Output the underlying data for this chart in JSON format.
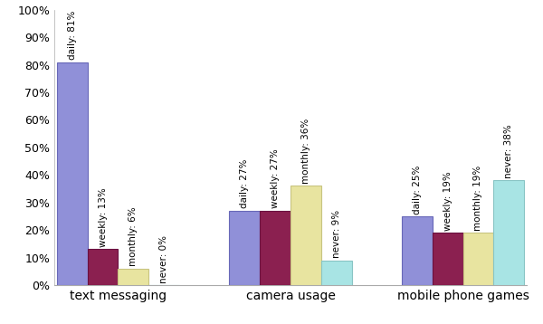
{
  "categories": [
    "text messaging",
    "camera usage",
    "mobile phone games"
  ],
  "subcategories": [
    "daily",
    "weekly",
    "monthly",
    "never"
  ],
  "values": [
    [
      81,
      13,
      6,
      0
    ],
    [
      27,
      27,
      36,
      9
    ],
    [
      25,
      19,
      19,
      38
    ]
  ],
  "bar_colors": [
    "#9090d8",
    "#8b2050",
    "#e8e4a0",
    "#a8e4e4"
  ],
  "bar_edge_colors": [
    "#6868b8",
    "#6a1040",
    "#c8c480",
    "#88c4c4"
  ],
  "labels": [
    [
      "daily: 81%",
      "weekly: 13%",
      "monthly: 6%",
      "never: 0%"
    ],
    [
      "daily: 27%",
      "weekly: 27%",
      "monthly: 36%",
      "never: 9%"
    ],
    [
      "daily: 25%",
      "weekly: 19%",
      "monthly: 19%",
      "never: 38%"
    ]
  ],
  "ylim": [
    0,
    100
  ],
  "yticks": [
    0,
    10,
    20,
    30,
    40,
    50,
    60,
    70,
    80,
    90,
    100
  ],
  "ytick_labels": [
    "0%",
    "10%",
    "20%",
    "30%",
    "40%",
    "50%",
    "60%",
    "70%",
    "80%",
    "90%",
    "100%"
  ],
  "figsize": [
    6.0,
    3.58
  ],
  "dpi": 100,
  "bar_width": 0.13,
  "group_centers": [
    0.27,
    1.0,
    1.73
  ],
  "label_fontsize": 7.5,
  "cat_fontsize": 10,
  "ytick_fontsize": 9,
  "background_color": "#ffffff"
}
